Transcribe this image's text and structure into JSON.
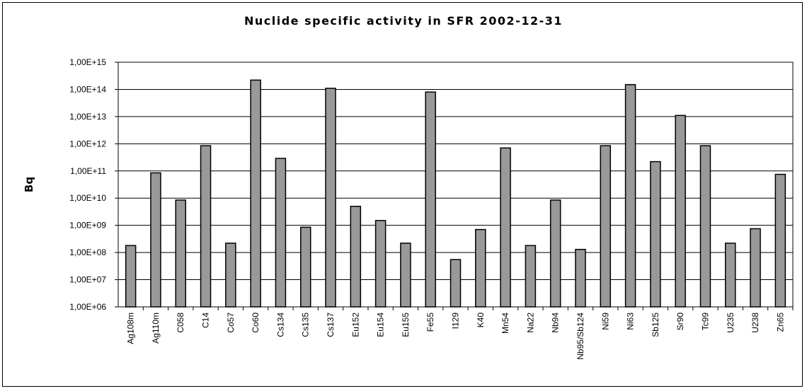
{
  "chart_data": {
    "type": "bar",
    "title": "Nuclide specific activity in SFR 2002-12-31",
    "xlabel": "",
    "ylabel": "Bq",
    "yscale": "log",
    "ylim": [
      1000000,
      1000000000000000
    ],
    "ytick_labels": [
      "1,00E+06",
      "1,00E+07",
      "1,00E+08",
      "1,00E+09",
      "1,00E+10",
      "1,00E+11",
      "1,00E+12",
      "1,00E+13",
      "1,00E+14",
      "1,00E+15"
    ],
    "grid": true,
    "legend": "none",
    "bar_color": "#999999",
    "categories": [
      "Ag108m",
      "Ag110m",
      "C058",
      "C14",
      "Co57",
      "Co60",
      "Cs134",
      "Cs135",
      "Cs137",
      "Eu152",
      "Eu154",
      "Eu155",
      "Fe55",
      "I129",
      "K40",
      "Mn54",
      "Na22",
      "Nb94",
      "Nb95/Sb124",
      "Ni59",
      "Ni63",
      "Sb125",
      "Sr90",
      "Tc99",
      "U235",
      "U238",
      "Zn65"
    ],
    "values": [
      180000000,
      85000000000,
      8500000000,
      850000000000,
      220000000,
      220000000000000,
      290000000000,
      850000000,
      110000000000000,
      5000000000,
      1500000000,
      220000000,
      80000000000000,
      55000000,
      700000000,
      700000000000,
      180000000,
      8500000000,
      130000000,
      850000000000,
      150000000000000,
      220000000000,
      11000000000000,
      850000000000,
      220000000,
      750000000,
      75000000000
    ]
  }
}
